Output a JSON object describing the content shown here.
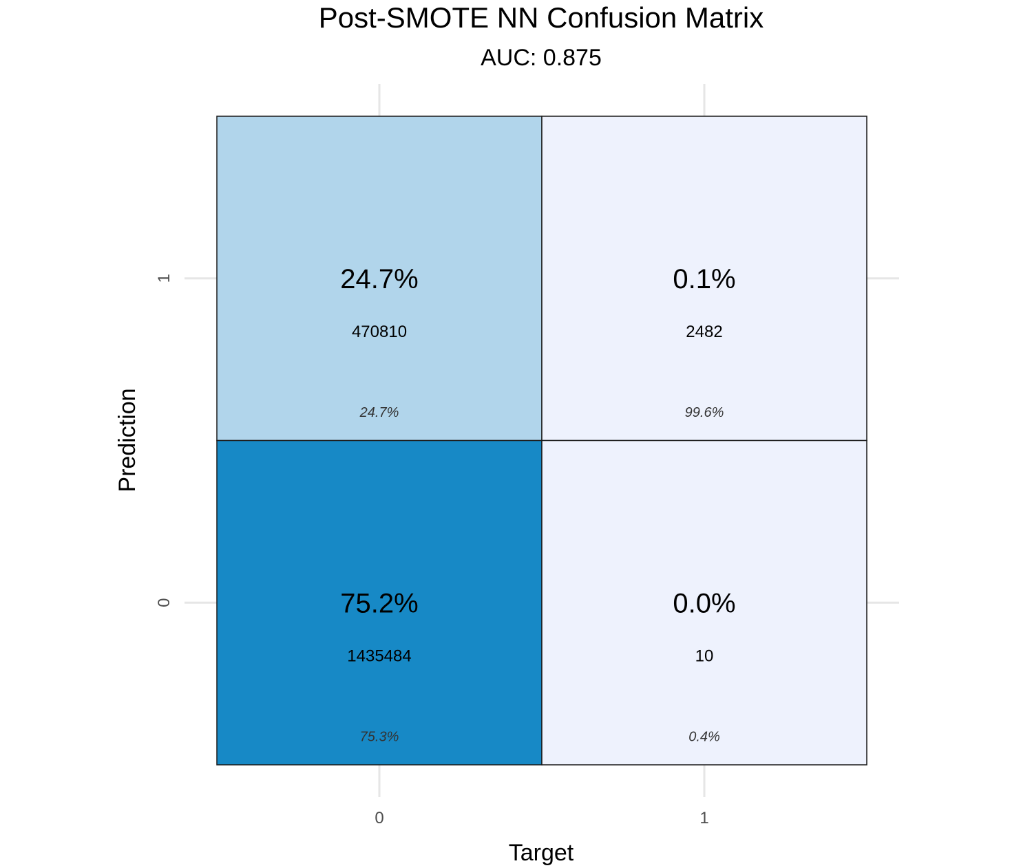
{
  "chart_data": {
    "type": "heatmap",
    "title": "Post-SMOTE NN Confusion Matrix",
    "subtitle": "AUC: 0.875",
    "xlabel": "Target",
    "ylabel": "Prediction",
    "x_categories": [
      "0",
      "1"
    ],
    "y_categories": [
      "0",
      "1"
    ],
    "cells": [
      {
        "target": "0",
        "prediction": "1",
        "count": 470810,
        "percent_label": "24.7%",
        "count_label": "470810",
        "normalized_label": "24.7%",
        "fill": "#b1d5eb"
      },
      {
        "target": "1",
        "prediction": "1",
        "count": 2482,
        "percent_label": "0.1%",
        "count_label": "2482",
        "normalized_label": "99.6%",
        "fill": "#eef2fd"
      },
      {
        "target": "0",
        "prediction": "0",
        "count": 1435484,
        "percent_label": "75.2%",
        "count_label": "1435484",
        "normalized_label": "75.3%",
        "fill": "#1789c6"
      },
      {
        "target": "1",
        "prediction": "0",
        "count": 10,
        "percent_label": "0.0%",
        "count_label": "10",
        "normalized_label": "0.4%",
        "fill": "#eef2fd"
      }
    ],
    "grid": true,
    "legend": "none"
  }
}
